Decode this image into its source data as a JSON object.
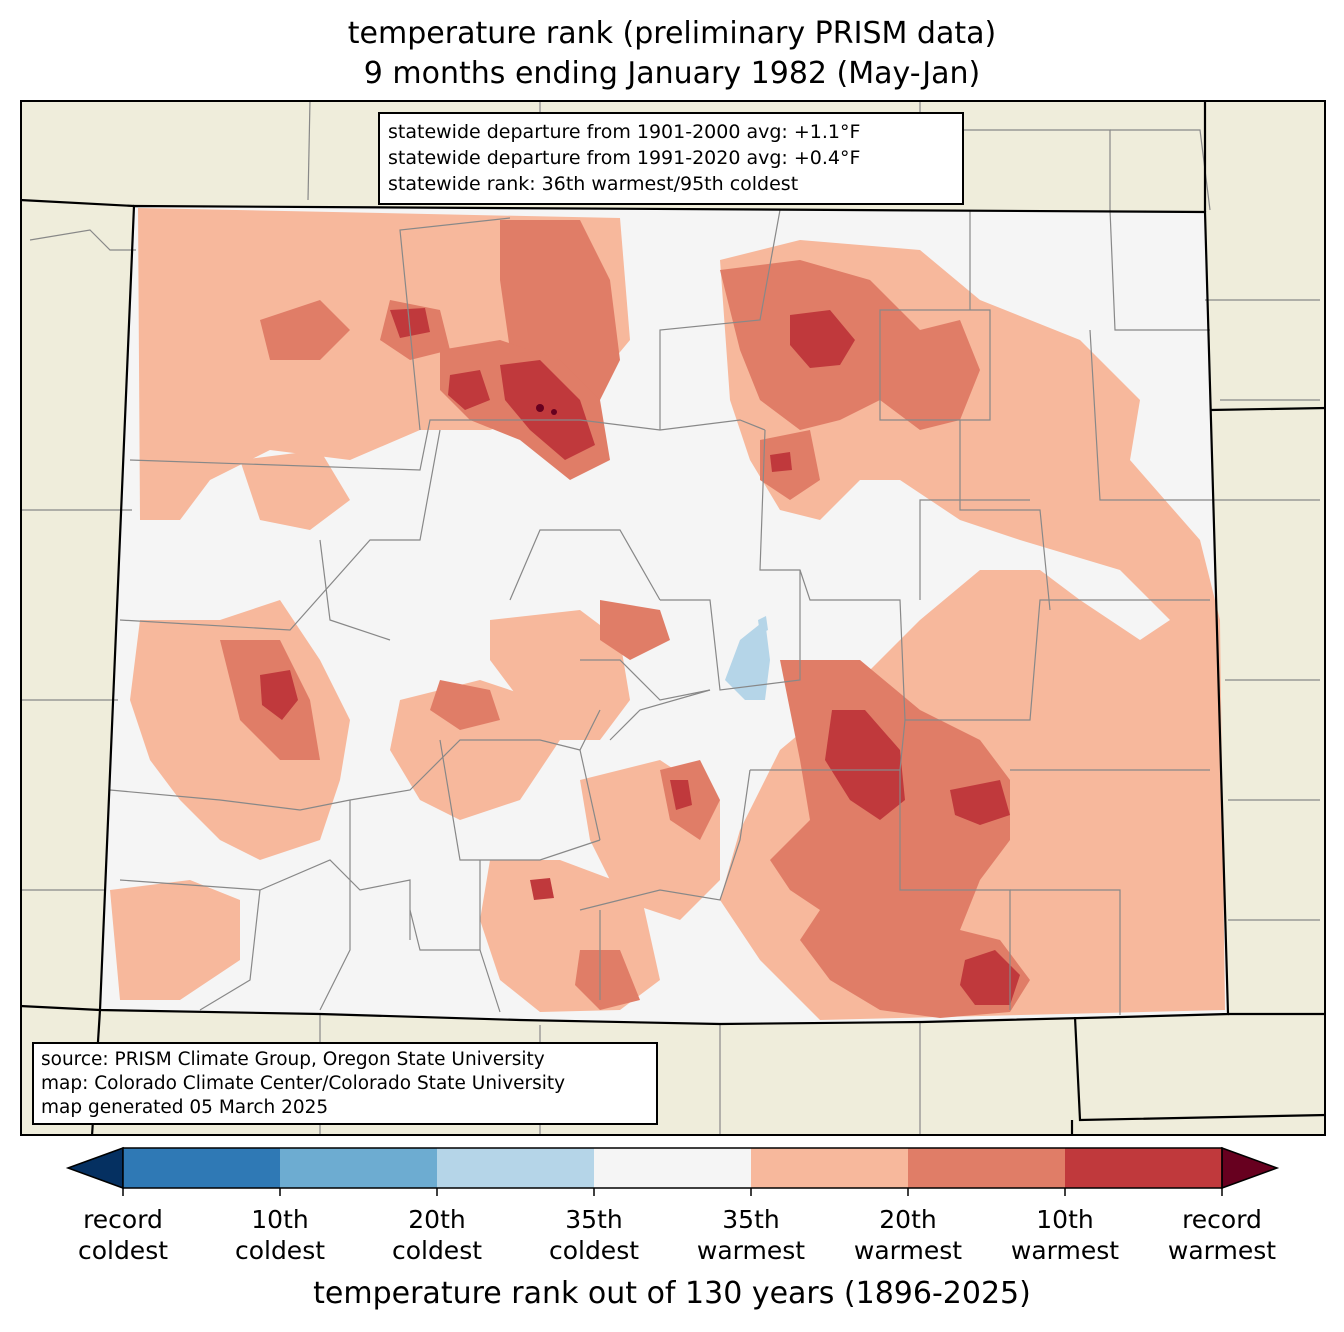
{
  "title": {
    "line1": "temperature rank (preliminary PRISM data)",
    "line2": "9 months ending January 1982 (May-Jan)"
  },
  "stats": {
    "line1": "statewide departure from 1901-2000 avg: +1.1°F",
    "line2": "statewide departure from 1991-2020 avg: +0.4°F",
    "line3": "statewide rank: 36th warmest/95th coldest"
  },
  "source": {
    "line1": "source: PRISM Climate Group, Oregon State University",
    "line2": "map: Colorado Climate Center/Colorado State University",
    "line3": "map generated 05 March 2025"
  },
  "colorbar": {
    "label": "temperature rank out of 130 years (1896-2025)",
    "ticks": [
      {
        "line1": "record",
        "line2": "coldest"
      },
      {
        "line1": "10th",
        "line2": "coldest"
      },
      {
        "line1": "20th",
        "line2": "coldest"
      },
      {
        "line1": "35th",
        "line2": "coldest"
      },
      {
        "line1": "35th",
        "line2": "warmest"
      },
      {
        "line1": "20th",
        "line2": "warmest"
      },
      {
        "line1": "10th",
        "line2": "warmest"
      },
      {
        "line1": "record",
        "line2": "warmest"
      }
    ],
    "colors": {
      "below_record_coldest": "#053061",
      "record_to_10th_coldest": "#2f79b5",
      "10th_to_20th_coldest": "#6dacd1",
      "20th_to_35th_coldest": "#b5d5e8",
      "near_normal": "#f5f5f5",
      "35th_to_20th_warmest": "#f7b89c",
      "20th_to_10th_warmest": "#e07d67",
      "10th_to_record_warmest": "#c0393c",
      "above_record_warmest": "#67001f"
    }
  },
  "map_colors": {
    "land_outside": "#efeddb",
    "county_lines": "#888888",
    "state_lines": "#000000"
  }
}
